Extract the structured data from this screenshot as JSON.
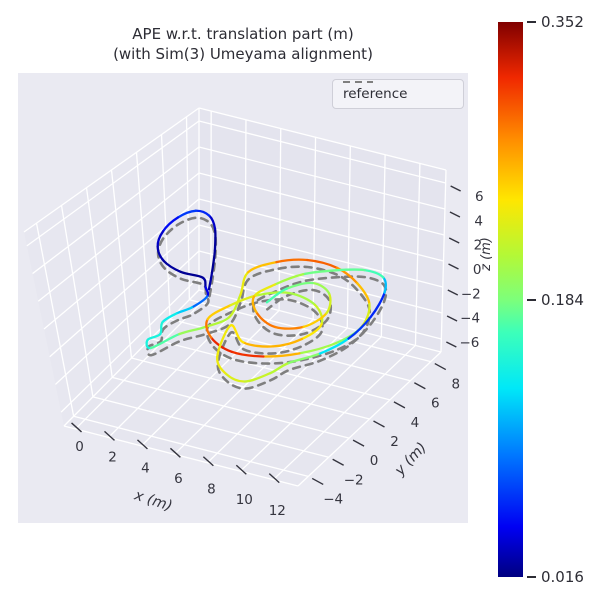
{
  "title": {
    "line1": "APE w.r.t. translation part (m)",
    "line2": "(with Sim(3) Umeyama alignment)"
  },
  "legend": {
    "items": [
      {
        "label": "reference",
        "style": "dashed",
        "color": "#7f7f7f"
      }
    ]
  },
  "colors": {
    "figure_bg": "#ffffff",
    "axes_bg": "#eaeaf2",
    "grid": "#ffffff",
    "pane_left": "#e7e7f0",
    "pane_right": "#e4e4ee",
    "pane_floor": "#e6e6ef",
    "tick_text": "#35353f",
    "reference_line": "#7f7f7f",
    "jet_stops": [
      [
        0.0,
        "#000080"
      ],
      [
        0.09,
        "#0000f3"
      ],
      [
        0.22,
        "#0078ff"
      ],
      [
        0.34,
        "#00e8f8"
      ],
      [
        0.44,
        "#3cffba"
      ],
      [
        0.5,
        "#7dff7a"
      ],
      [
        0.58,
        "#b4f836"
      ],
      [
        0.68,
        "#ffe600"
      ],
      [
        0.79,
        "#ff8c00"
      ],
      [
        0.9,
        "#f02800"
      ],
      [
        1.0,
        "#800000"
      ]
    ]
  },
  "chart_data": {
    "type": "line",
    "projection": "3d",
    "grid": true,
    "legend_position": "upper right",
    "axes": {
      "x": {
        "label": "x (m)",
        "ticks": [
          0,
          2,
          4,
          6,
          8,
          10,
          12
        ],
        "range": [
          -0.7,
          13.5
        ]
      },
      "y": {
        "label": "y (m)",
        "ticks": [
          -4,
          -2,
          0,
          2,
          4,
          6,
          8
        ],
        "range": [
          -5,
          9
        ]
      },
      "z": {
        "label": "z (m)",
        "ticks": [
          -6,
          -4,
          -2,
          0,
          2,
          4,
          6
        ],
        "range": [
          -7,
          7
        ]
      }
    },
    "colorbar": {
      "colormap": "jet",
      "vmin": 0.016,
      "vmid": 0.184,
      "vmax": 0.352,
      "label_min": "0.016",
      "label_mid": "0.184",
      "label_max": "0.352"
    },
    "series": [
      {
        "name": "reference",
        "style": "dashed",
        "color": "#7f7f7f",
        "derived": "estimate_offset",
        "offset_xyz": [
          0.2,
          -0.3,
          -0.25
        ]
      },
      {
        "name": "estimate_ape_colored",
        "style": "solid",
        "points_xyz_ape": [
          [
            4.6,
            1.6,
            0.2,
            0.03
          ],
          [
            4.3,
            2.4,
            0.8,
            0.022
          ],
          [
            4.0,
            3.2,
            1.8,
            0.02
          ],
          [
            3.6,
            3.9,
            2.8,
            0.025
          ],
          [
            3.1,
            4.2,
            3.4,
            0.045
          ],
          [
            2.4,
            4.1,
            3.6,
            0.075
          ],
          [
            1.7,
            3.6,
            3.2,
            0.06
          ],
          [
            1.2,
            3.0,
            2.4,
            0.04
          ],
          [
            1.1,
            2.6,
            1.5,
            0.03
          ],
          [
            1.6,
            2.3,
            0.8,
            0.025
          ],
          [
            2.6,
            2.2,
            0.4,
            0.022
          ],
          [
            3.8,
            2.3,
            0.3,
            0.02
          ],
          [
            4.2,
            1.9,
            0.0,
            0.028
          ],
          [
            4.6,
            1.4,
            -0.2,
            0.06
          ],
          [
            4.2,
            0.6,
            -0.6,
            0.11
          ],
          [
            3.6,
            0.1,
            -0.9,
            0.13
          ],
          [
            3.2,
            -0.6,
            -1.2,
            0.145
          ],
          [
            3.4,
            -1.2,
            -1.6,
            0.15
          ],
          [
            2.9,
            -1.6,
            -1.9,
            0.14
          ],
          [
            3.3,
            -2.0,
            -2.1,
            0.15
          ],
          [
            4.4,
            -1.0,
            -1.4,
            0.19
          ],
          [
            5.4,
            -0.2,
            -1.1,
            0.205
          ],
          [
            6.2,
            0.8,
            -0.8,
            0.215
          ],
          [
            6.0,
            2.2,
            -0.2,
            0.225
          ],
          [
            5.6,
            3.6,
            0.4,
            0.245
          ],
          [
            6.6,
            4.6,
            0.8,
            0.275
          ],
          [
            8.0,
            5.2,
            1.0,
            0.31
          ],
          [
            9.6,
            5.4,
            0.8,
            0.285
          ],
          [
            11.0,
            5.0,
            0.4,
            0.27
          ],
          [
            12.2,
            4.2,
            -0.2,
            0.25
          ],
          [
            12.6,
            2.8,
            -0.8,
            0.205
          ],
          [
            12.0,
            1.4,
            -1.2,
            0.175
          ],
          [
            10.6,
            0.2,
            -1.6,
            0.23
          ],
          [
            9.0,
            -0.6,
            -1.8,
            0.3
          ],
          [
            7.4,
            -1.0,
            -1.7,
            0.33
          ],
          [
            6.0,
            -0.6,
            -1.4,
            0.31
          ],
          [
            5.2,
            0.4,
            -1.0,
            0.27
          ],
          [
            5.8,
            1.6,
            -0.6,
            0.24
          ],
          [
            6.8,
            2.6,
            -0.2,
            0.22
          ],
          [
            8.2,
            3.2,
            0.0,
            0.2
          ],
          [
            9.8,
            3.0,
            -0.2,
            0.21
          ],
          [
            10.8,
            2.0,
            -0.6,
            0.23
          ],
          [
            10.4,
            0.8,
            -1.0,
            0.255
          ],
          [
            9.2,
            0.0,
            -1.4,
            0.275
          ],
          [
            7.6,
            -0.2,
            -1.5,
            0.255
          ],
          [
            6.4,
            0.6,
            -1.2,
            0.235
          ],
          [
            6.8,
            -1.4,
            -2.0,
            0.24
          ],
          [
            7.8,
            -2.2,
            -2.4,
            0.232
          ],
          [
            9.0,
            -2.4,
            -2.4,
            0.225
          ],
          [
            10.0,
            -1.6,
            -2.0,
            0.215
          ],
          [
            10.6,
            -0.8,
            -1.6,
            0.21
          ],
          [
            11.8,
            0.2,
            -1.2,
            0.17
          ],
          [
            12.6,
            1.6,
            -0.8,
            0.09
          ],
          [
            12.9,
            3.2,
            -0.2,
            0.04
          ],
          [
            12.7,
            4.8,
            0.4,
            0.08
          ],
          [
            12.0,
            5.8,
            0.6,
            0.15
          ],
          [
            10.8,
            6.0,
            0.6,
            0.18
          ],
          [
            9.4,
            5.6,
            0.4,
            0.17
          ],
          [
            8.0,
            4.8,
            0.2,
            0.19
          ],
          [
            7.0,
            3.8,
            -0.2,
            0.22
          ],
          [
            6.4,
            2.8,
            -0.6,
            0.25
          ],
          [
            7.2,
            1.8,
            -0.9,
            0.28
          ],
          [
            8.6,
            1.2,
            -1.0,
            0.3
          ],
          [
            10.0,
            1.6,
            -0.8,
            0.27
          ],
          [
            10.6,
            2.8,
            -0.4,
            0.24
          ],
          [
            10.0,
            4.0,
            0.0,
            0.21
          ],
          [
            8.8,
            4.4,
            0.1,
            0.19
          ],
          [
            7.8,
            3.6,
            -0.1,
            0.175
          ],
          [
            7.4,
            2.4,
            -0.4,
            0.16
          ]
        ]
      }
    ]
  }
}
